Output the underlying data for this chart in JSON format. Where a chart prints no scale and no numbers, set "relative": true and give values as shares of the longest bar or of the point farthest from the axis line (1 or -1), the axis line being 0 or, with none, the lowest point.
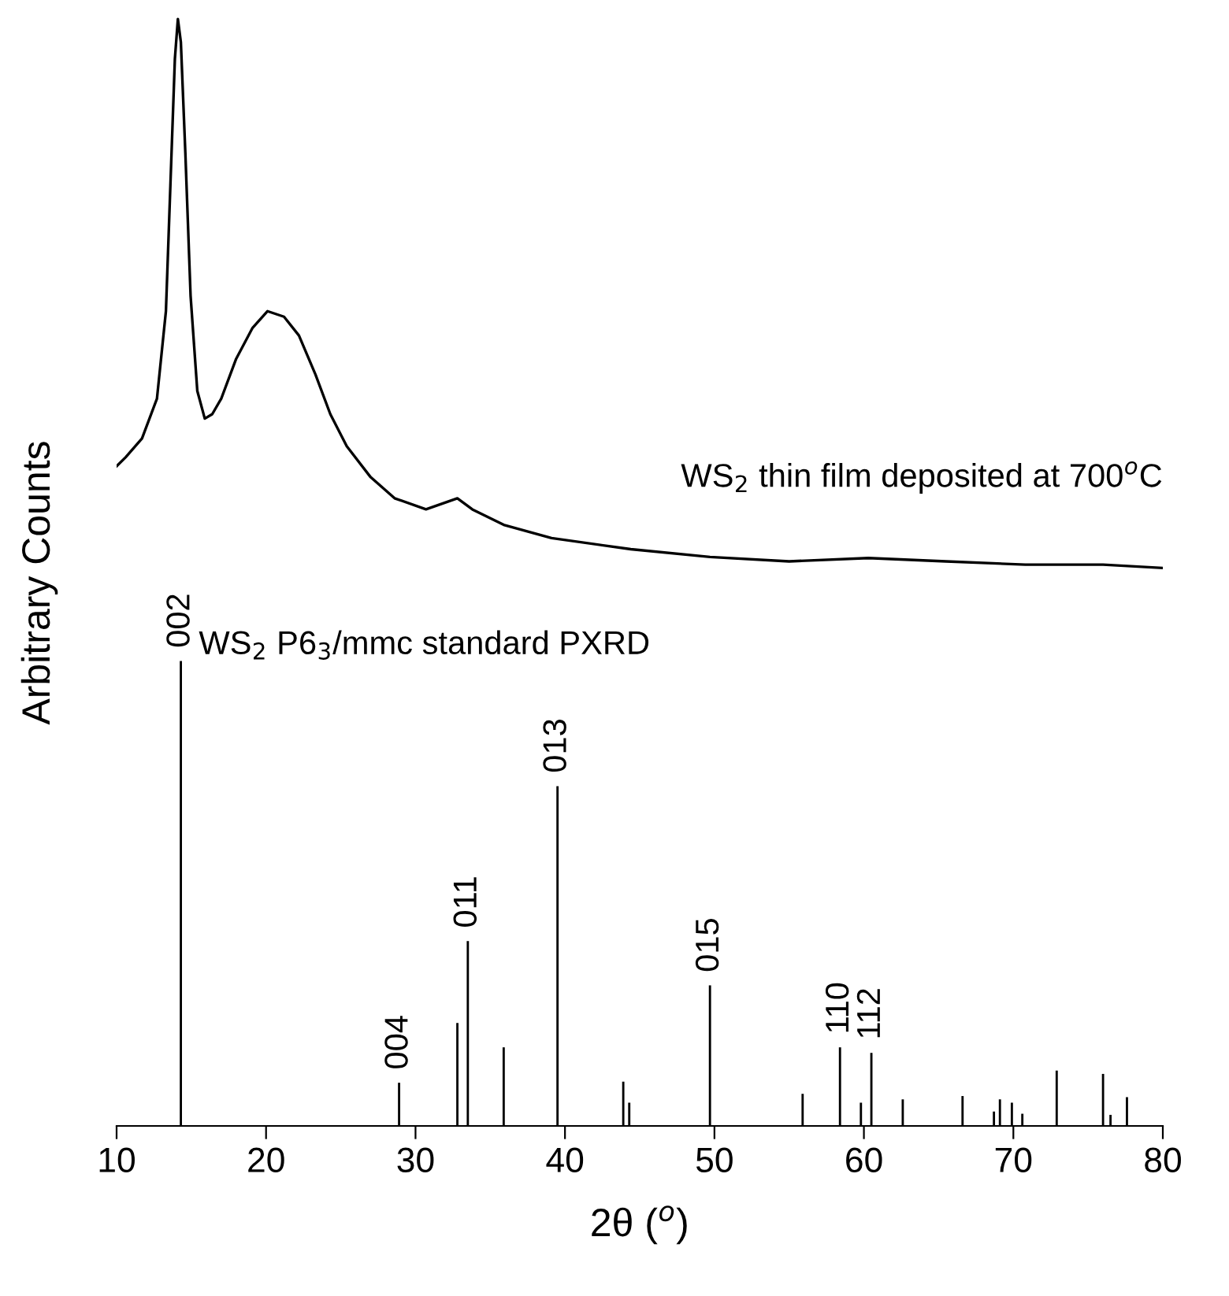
{
  "chart_data": {
    "type": "line",
    "relative": true,
    "xlabel": "2θ ($^{o}$)",
    "ylabel": "Arbitrary Counts",
    "xlim": [
      10,
      80
    ],
    "xticks": [
      10,
      20,
      30,
      40,
      50,
      60,
      70,
      80
    ],
    "tick_labels": "x",
    "grid": false,
    "series": [
      {
        "name": "WS$_{2}$ thin film deposited at 700$^{o}$C",
        "color": "#000000",
        "x": [
          10,
          10.6,
          11.7,
          12.7,
          13.3,
          13.6,
          13.9,
          14.1,
          14.3,
          14.6,
          14.95,
          15.4,
          15.9,
          16.4,
          17.0,
          18.0,
          19.1,
          20.1,
          21.2,
          22.2,
          23.3,
          24.3,
          25.4,
          27.0,
          28.6,
          30.7,
          32.8,
          33.8,
          35.9,
          39.1,
          44.4,
          49.7,
          55.0,
          60.3,
          65.5,
          70.8,
          76.0,
          80
        ],
        "values": [
          0.596,
          0.604,
          0.621,
          0.657,
          0.736,
          0.85,
          0.964,
          1.0,
          0.979,
          0.879,
          0.75,
          0.664,
          0.639,
          0.643,
          0.657,
          0.693,
          0.721,
          0.736,
          0.731,
          0.714,
          0.679,
          0.643,
          0.614,
          0.586,
          0.567,
          0.557,
          0.567,
          0.557,
          0.543,
          0.531,
          0.521,
          0.514,
          0.51,
          0.513,
          0.51,
          0.507,
          0.507,
          0.504
        ]
      },
      {
        "name": "WS$_{2}$ P6$_{3}$/mmc standard PXRD",
        "type": "bar",
        "color": "#000000",
        "x": [
          14.3,
          28.9,
          32.8,
          33.5,
          35.9,
          39.5,
          43.9,
          44.3,
          49.7,
          55.9,
          58.4,
          59.8,
          60.5,
          62.6,
          66.6,
          68.7,
          69.1,
          69.9,
          70.6,
          72.9,
          76.0,
          76.5,
          77.6
        ],
        "values": [
          0.42,
          0.039,
          0.093,
          0.167,
          0.071,
          0.307,
          0.04,
          0.021,
          0.127,
          0.029,
          0.071,
          0.021,
          0.066,
          0.024,
          0.027,
          0.013,
          0.024,
          0.021,
          0.011,
          0.05,
          0.047,
          0.01,
          0.026
        ]
      }
    ],
    "annotations": [
      {
        "text": "002",
        "x": 14.3,
        "y": 0.42
      },
      {
        "text": "004",
        "x": 28.9,
        "y": 0.039
      },
      {
        "text": "011",
        "x": 33.5,
        "y": 0.167
      },
      {
        "text": "013",
        "x": 39.5,
        "y": 0.307
      },
      {
        "text": "015",
        "x": 49.7,
        "y": 0.127
      },
      {
        "text": "110",
        "x": 58.4,
        "y": 0.071
      },
      {
        "text": "112",
        "x": 60.5,
        "y": 0.066
      }
    ]
  }
}
